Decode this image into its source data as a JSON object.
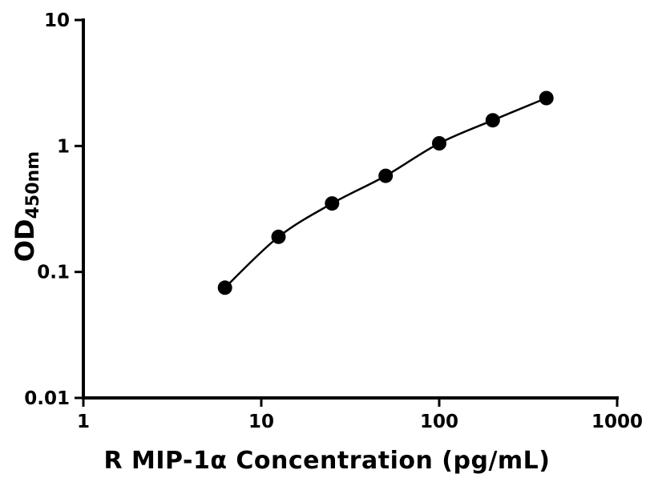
{
  "chart_data": {
    "type": "scatter",
    "xlabel": "R MIP-1α Concentration (pg/mL)",
    "ylabel_main": "OD",
    "ylabel_sub": "450nm",
    "x": [
      6.25,
      12.5,
      25,
      50,
      100,
      200,
      400
    ],
    "y": [
      0.075,
      0.19,
      0.35,
      0.58,
      1.05,
      1.6,
      2.4
    ],
    "x_scale": "log",
    "y_scale": "log",
    "xlim": [
      1,
      1000
    ],
    "ylim": [
      0.01,
      10
    ],
    "x_tick_values": [
      1,
      10,
      100,
      1000
    ],
    "x_tick_labels": [
      "1",
      "10",
      "100",
      "1000"
    ],
    "y_tick_values": [
      0.01,
      0.1,
      1,
      10
    ],
    "y_tick_labels": [
      "0.01",
      "0.1",
      "1",
      "10"
    ],
    "grid": false,
    "legend_position": "none",
    "marker": "filled-circle",
    "marker_color": "#000000",
    "line_color": "#000000",
    "axis_color": "#000000",
    "background_color": "#ffffff"
  }
}
